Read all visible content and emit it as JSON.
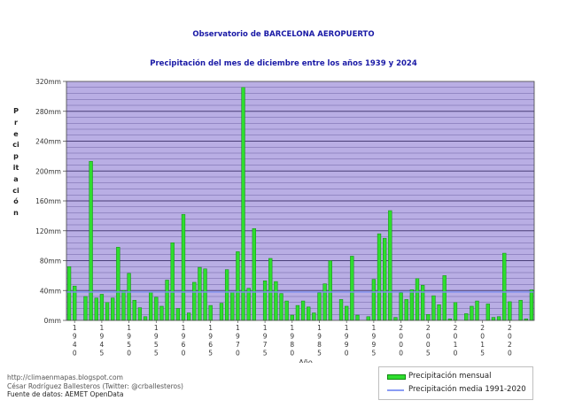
{
  "header": {
    "title": "Observatorio de BARCELONA AEROPUERTO",
    "subtitle": "Precipitación del mes de diciembre entre los años 1939 y 2024"
  },
  "credits": {
    "site": "http://climaenmapas.blogspot.com",
    "author": "César Rodríguez Ballesteros (Twitter: @crballesteros)",
    "source": "Fuente de datos: AEMET OpenData"
  },
  "legend": {
    "bars_label": "Precipitación mensual",
    "mean_label": "Precipitación media 1991-2020"
  },
  "colors": {
    "plot_background": "#b9aee4",
    "bar_fill": "#2ede2e",
    "bar_edge": "#118811",
    "mean_line": "#7d8ff0",
    "title": "#1a1aa6"
  },
  "chart_data": {
    "type": "bar",
    "title": "Precipitación del mes de diciembre entre los años 1939 y 2024",
    "xlabel": "Año",
    "ylabel": "Precipitación",
    "ylim": [
      0,
      320
    ],
    "y_ticks": [
      0,
      40,
      80,
      120,
      160,
      200,
      240,
      280,
      320
    ],
    "y_tick_labels": [
      "0mm",
      "40mm",
      "80mm",
      "120mm",
      "160mm",
      "200mm",
      "240mm",
      "280mm",
      "320mm"
    ],
    "x_tick_labels": [
      "1940",
      "1945",
      "1950",
      "1955",
      "1960",
      "1965",
      "1970",
      "1975",
      "1980",
      "1985",
      "1990",
      "1995",
      "2000",
      "2005",
      "2010",
      "2015",
      "2020"
    ],
    "grid": true,
    "legend_position": "bottom-right",
    "mean_1991_2020": 38,
    "categories": [
      1939,
      1940,
      1941,
      1942,
      1943,
      1944,
      1945,
      1946,
      1947,
      1948,
      1949,
      1950,
      1951,
      1952,
      1953,
      1954,
      1955,
      1956,
      1957,
      1958,
      1959,
      1960,
      1961,
      1962,
      1963,
      1964,
      1965,
      1966,
      1967,
      1968,
      1969,
      1970,
      1971,
      1972,
      1973,
      1974,
      1975,
      1976,
      1977,
      1978,
      1979,
      1980,
      1981,
      1982,
      1983,
      1984,
      1985,
      1986,
      1987,
      1988,
      1989,
      1990,
      1991,
      1992,
      1993,
      1994,
      1995,
      1996,
      1997,
      1998,
      1999,
      2000,
      2001,
      2002,
      2003,
      2004,
      2005,
      2006,
      2007,
      2008,
      2009,
      2010,
      2011,
      2012,
      2013,
      2014,
      2015,
      2016,
      2017,
      2018,
      2019,
      2020,
      2021,
      2022,
      2023,
      2024
    ],
    "series": [
      {
        "name": "Precipitación mensual",
        "values": [
          72,
          46,
          0,
          32,
          213,
          30,
          35,
          24,
          30,
          98,
          40,
          63,
          27,
          17,
          5,
          38,
          31,
          19,
          54,
          104,
          16,
          142,
          10,
          51,
          71,
          69,
          20,
          0,
          23,
          68,
          38,
          92,
          312,
          43,
          123,
          0,
          53,
          83,
          52,
          36,
          26,
          7,
          20,
          26,
          18,
          10,
          37,
          49,
          80,
          0,
          28,
          19,
          86,
          7,
          0,
          5,
          55,
          116,
          110,
          147,
          4,
          37,
          28,
          41,
          56,
          47,
          8,
          33,
          21,
          60,
          2,
          24,
          0,
          9,
          19,
          26,
          0,
          22,
          4,
          5,
          90,
          25,
          0,
          27,
          2,
          41
        ]
      }
    ]
  }
}
